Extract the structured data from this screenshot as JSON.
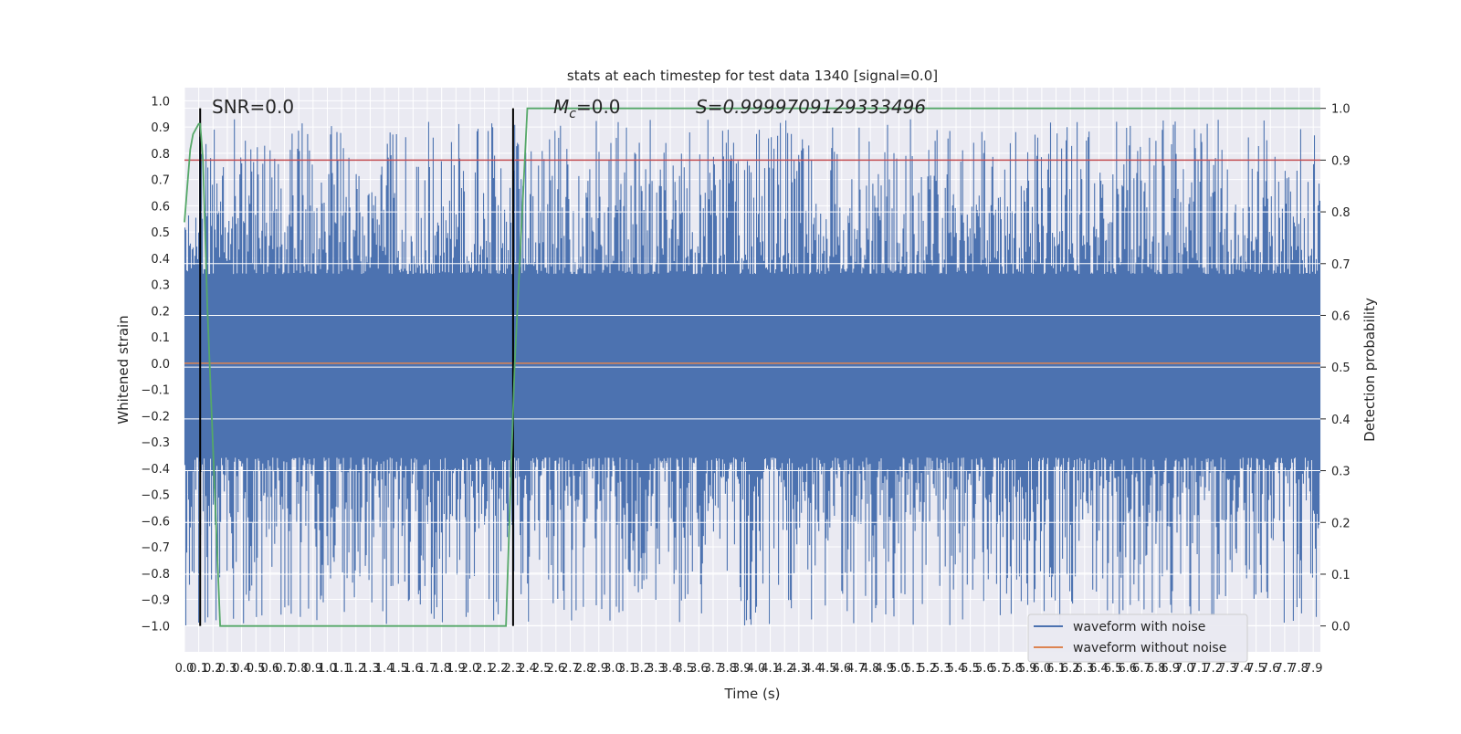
{
  "chart_data": {
    "type": "line",
    "title": "stats at each timestep for test data 1340 [signal=0.0]",
    "xlabel": "Time (s)",
    "ylabel_left": "Whitened strain",
    "ylabel_right": "Detection probability",
    "xlim": [
      0.0,
      7.95
    ],
    "ylim_left": [
      -1.1,
      1.05
    ],
    "ylim_right": [
      -0.05,
      1.04
    ],
    "x_ticks": [
      "0.0",
      "0.1",
      "0.2",
      "0.3",
      "0.4",
      "0.5",
      "0.6",
      "0.7",
      "0.8",
      "0.9",
      "1.0",
      "1.1",
      "1.2",
      "1.3",
      "1.4",
      "1.5",
      "1.6",
      "1.7",
      "1.8",
      "1.9",
      "2.0",
      "2.1",
      "2.2",
      "2.3",
      "2.4",
      "2.5",
      "2.6",
      "2.7",
      "2.8",
      "2.9",
      "3.0",
      "3.1",
      "3.2",
      "3.3",
      "3.4",
      "3.5",
      "3.6",
      "3.7",
      "3.8",
      "3.9",
      "4.0",
      "4.1",
      "4.2",
      "4.3",
      "4.4",
      "4.5",
      "4.6",
      "4.7",
      "4.8",
      "4.9",
      "5.0",
      "5.1",
      "5.2",
      "5.3",
      "5.4",
      "5.5",
      "5.6",
      "5.7",
      "5.8",
      "5.9",
      "6.0",
      "6.1",
      "6.2",
      "6.3",
      "6.4",
      "6.5",
      "6.6",
      "6.7",
      "6.8",
      "6.9",
      "7.0",
      "7.1",
      "7.2",
      "7.3",
      "7.4",
      "7.5",
      "7.6",
      "7.7",
      "7.8",
      "7.9"
    ],
    "y_ticks_left": [
      "1.0",
      "0.9",
      "0.8",
      "0.7",
      "0.6",
      "0.5",
      "0.4",
      "0.3",
      "0.2",
      "0.1",
      "0.0",
      "−0.1",
      "−0.2",
      "−0.3",
      "−0.4",
      "−0.5",
      "−0.6",
      "−0.7",
      "−0.8",
      "−0.9",
      "−1.0"
    ],
    "y_ticks_right": [
      "1.0",
      "0.9",
      "0.8",
      "0.7",
      "0.6",
      "0.5",
      "0.4",
      "0.3",
      "0.2",
      "0.1",
      "0.0"
    ],
    "grid": true,
    "legend_position": "bottom-right",
    "annotations": {
      "snr": "SNR=0.0",
      "mc_symbol": "M",
      "mc_sub": "c",
      "mc_value": "=0.0",
      "s": "S=0.9999709129333496"
    },
    "noise_envelope": {
      "pos_base": 0.34,
      "pos_max": 0.93,
      "neg_base": -0.36,
      "neg_min": -1.0
    },
    "series": [
      {
        "name": "waveform with noise",
        "color": "#4c72b0",
        "note_values": "dense noise, roughly within -1.0 to 0.93"
      },
      {
        "name": "waveform without noise",
        "color": "#dd8452",
        "values_constant": 0.0
      }
    ],
    "detection_probability": {
      "color": "#55a868",
      "x": [
        0.0,
        0.04,
        0.06,
        0.1,
        0.11,
        0.13,
        0.16,
        0.25,
        0.3,
        2.25,
        2.31,
        2.4,
        7.95
      ],
      "y": [
        0.78,
        0.92,
        0.95,
        0.97,
        0.97,
        0.9,
        0.62,
        0.0,
        0.0,
        0.0,
        0.5,
        1.0,
        1.0
      ]
    },
    "threshold_line": {
      "color": "#c44e52",
      "value_right_axis": 0.9
    },
    "vertical_markers": {
      "color": "#000000",
      "x": [
        0.11,
        2.3
      ],
      "y_range_right": [
        0.0,
        1.0
      ]
    }
  }
}
